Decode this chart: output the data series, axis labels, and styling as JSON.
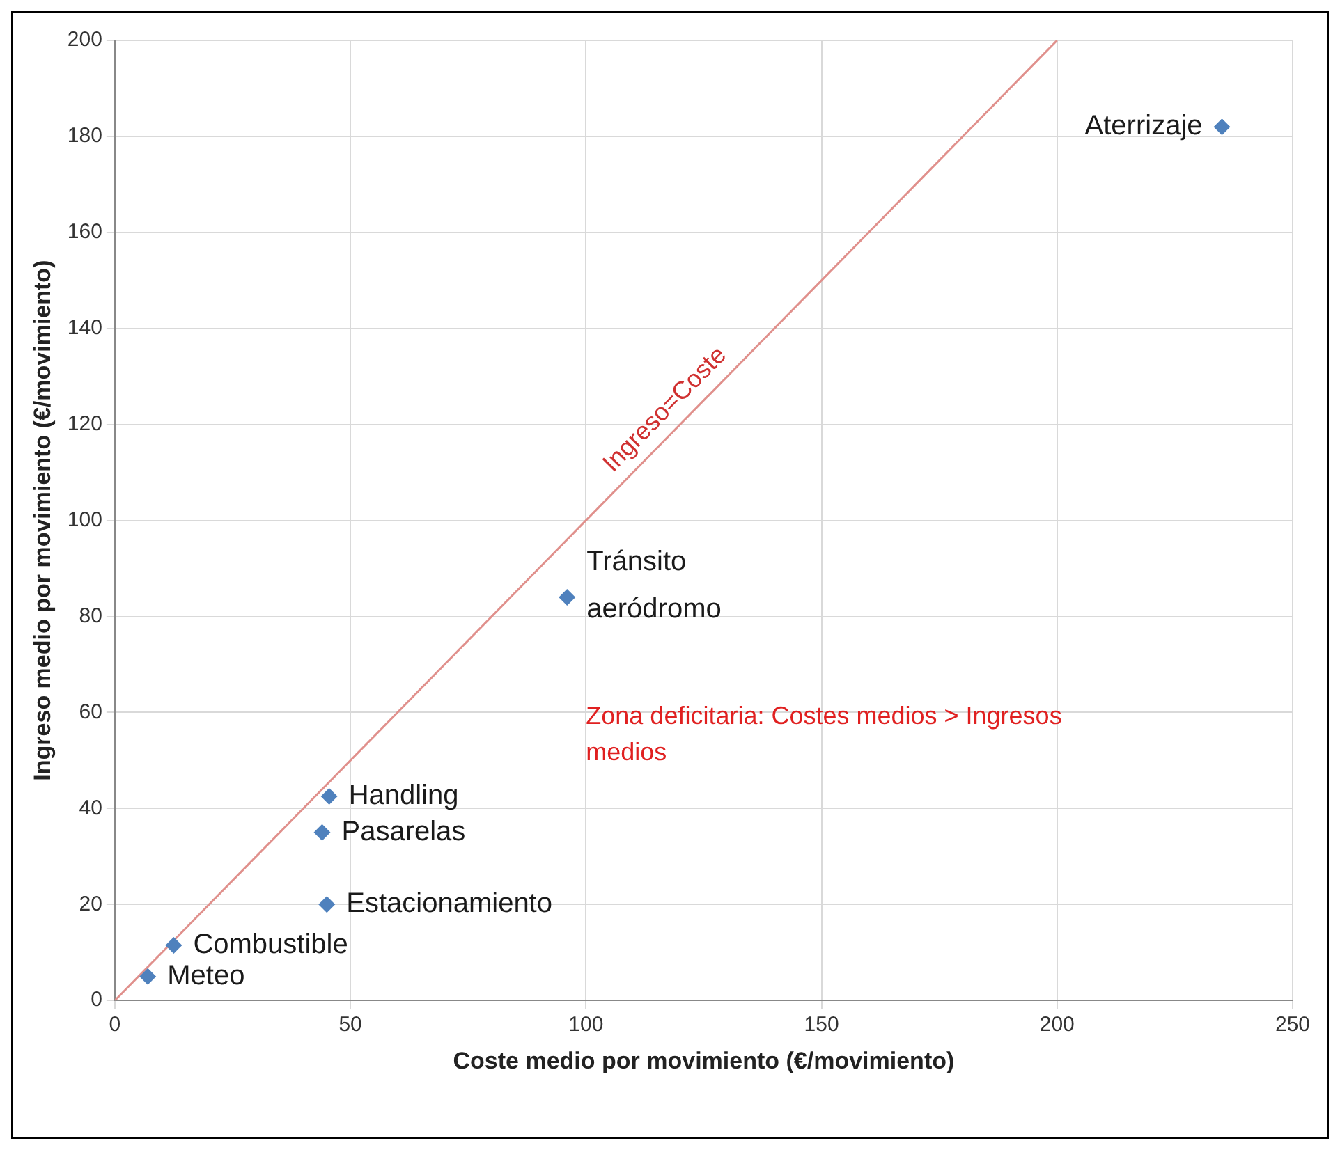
{
  "chart_data": {
    "type": "scatter",
    "xlabel": "Coste medio por movimiento (€/movimiento)",
    "ylabel": "Ingreso medio por movimiento (€/movimiento)",
    "xlim": [
      0,
      250
    ],
    "xticks": [
      0,
      50,
      100,
      150,
      200,
      250
    ],
    "ylim": [
      0,
      200
    ],
    "yticks": [
      0,
      20,
      40,
      60,
      80,
      100,
      120,
      140,
      160,
      180,
      200
    ],
    "grid": true,
    "legend": false,
    "marker": "diamond",
    "series": [
      {
        "color": "#4f81bd",
        "x": [
          7,
          12.5,
          45,
          44,
          45.5,
          96,
          235
        ],
        "values": [
          5,
          11.5,
          20,
          35,
          42.5,
          84,
          182
        ]
      },
      {
        "type": "line",
        "name": "Ingreso=Coste",
        "color": "#e0908c",
        "marker": "none",
        "x": [
          0,
          200
        ],
        "values": [
          0,
          200
        ]
      }
    ],
    "annotations": [
      {
        "text": "Meteo",
        "x": 7,
        "y": 5
      },
      {
        "text": "Combustible",
        "x": 12.5,
        "y": 11.5
      },
      {
        "text": "Estacionamiento",
        "x": 45,
        "y": 20
      },
      {
        "text": "Pasarelas",
        "x": 44,
        "y": 35
      },
      {
        "text": "Handling",
        "x": 45.5,
        "y": 42.5
      },
      {
        "text": "Tránsito\naeródromo",
        "x": 96,
        "y": 84
      },
      {
        "text": "Aterrizaje",
        "x": 235,
        "y": 182
      },
      "Zona deficitaria: Costes medios > Ingresos medios"
    ]
  }
}
